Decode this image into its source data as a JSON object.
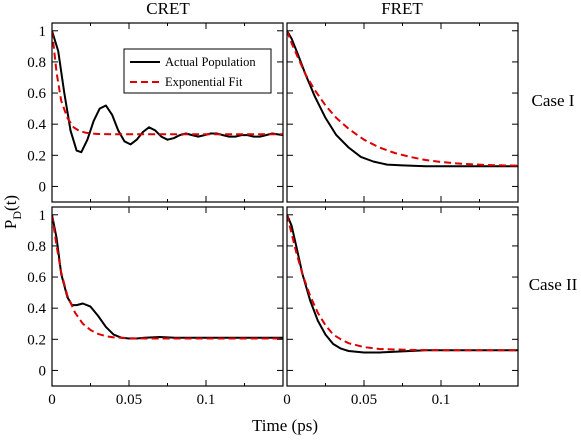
{
  "chart_data": [
    {
      "type": "line",
      "panel": "CRET / Case I",
      "xlim": [
        0,
        0.15
      ],
      "ylim": [
        -0.1,
        1.05
      ],
      "series": [
        {
          "name": "Actual Population",
          "color": "#000000",
          "dash": "solid",
          "x": [
            0,
            0.004,
            0.008,
            0.012,
            0.016,
            0.019,
            0.023,
            0.027,
            0.031,
            0.035,
            0.039,
            0.043,
            0.047,
            0.051,
            0.055,
            0.059,
            0.063,
            0.067,
            0.071,
            0.075,
            0.079,
            0.083,
            0.087,
            0.091,
            0.095,
            0.099,
            0.103,
            0.107,
            0.111,
            0.115,
            0.119,
            0.123,
            0.127,
            0.131,
            0.135,
            0.139,
            0.143,
            0.15
          ],
          "y": [
            1.0,
            0.87,
            0.6,
            0.36,
            0.23,
            0.22,
            0.3,
            0.42,
            0.5,
            0.52,
            0.46,
            0.36,
            0.29,
            0.27,
            0.3,
            0.35,
            0.38,
            0.36,
            0.32,
            0.3,
            0.31,
            0.33,
            0.34,
            0.33,
            0.32,
            0.33,
            0.34,
            0.34,
            0.33,
            0.32,
            0.32,
            0.33,
            0.33,
            0.32,
            0.32,
            0.33,
            0.34,
            0.33
          ]
        },
        {
          "name": "Exponential Fit",
          "color": "#dd0000",
          "dash": "dashed",
          "x": [
            0,
            0.003,
            0.006,
            0.01,
            0.014,
            0.018,
            0.022,
            0.026,
            0.03,
            0.035,
            0.04,
            0.05,
            0.06,
            0.08,
            0.1,
            0.12,
            0.15
          ],
          "y": [
            1.0,
            0.73,
            0.55,
            0.44,
            0.38,
            0.355,
            0.345,
            0.34,
            0.337,
            0.336,
            0.335,
            0.335,
            0.335,
            0.335,
            0.335,
            0.335,
            0.335
          ]
        }
      ],
      "legend": "top-right"
    },
    {
      "type": "line",
      "panel": "FRET / Case I",
      "xlim": [
        0,
        0.15
      ],
      "ylim": [
        -0.1,
        1.05
      ],
      "series": [
        {
          "name": "Actual Population",
          "color": "#000000",
          "dash": "solid",
          "x": [
            0,
            0.003,
            0.007,
            0.012,
            0.018,
            0.025,
            0.032,
            0.04,
            0.048,
            0.056,
            0.065,
            0.075,
            0.09,
            0.11,
            0.13,
            0.15
          ],
          "y": [
            1.0,
            0.95,
            0.85,
            0.72,
            0.58,
            0.44,
            0.33,
            0.25,
            0.19,
            0.16,
            0.14,
            0.135,
            0.13,
            0.13,
            0.13,
            0.13
          ]
        },
        {
          "name": "Exponential Fit",
          "color": "#dd0000",
          "dash": "dashed",
          "x": [
            0,
            0.003,
            0.007,
            0.012,
            0.018,
            0.025,
            0.032,
            0.04,
            0.05,
            0.06,
            0.07,
            0.08,
            0.09,
            0.1,
            0.11,
            0.12,
            0.13,
            0.14,
            0.15
          ],
          "y": [
            1.0,
            0.92,
            0.83,
            0.72,
            0.62,
            0.52,
            0.44,
            0.37,
            0.3,
            0.25,
            0.215,
            0.19,
            0.17,
            0.157,
            0.148,
            0.142,
            0.138,
            0.135,
            0.133
          ]
        }
      ]
    },
    {
      "type": "line",
      "panel": "CRET / Case II",
      "xlim": [
        0,
        0.15
      ],
      "ylim": [
        -0.1,
        1.05
      ],
      "series": [
        {
          "name": "Actual Population",
          "color": "#000000",
          "dash": "solid",
          "x": [
            0,
            0.003,
            0.006,
            0.01,
            0.013,
            0.016,
            0.02,
            0.025,
            0.03,
            0.035,
            0.04,
            0.045,
            0.05,
            0.055,
            0.06,
            0.07,
            0.08,
            0.1,
            0.12,
            0.15
          ],
          "y": [
            1.0,
            0.85,
            0.62,
            0.47,
            0.42,
            0.42,
            0.43,
            0.41,
            0.35,
            0.28,
            0.23,
            0.21,
            0.205,
            0.205,
            0.21,
            0.215,
            0.21,
            0.21,
            0.21,
            0.21
          ]
        },
        {
          "name": "Exponential Fit",
          "color": "#dd0000",
          "dash": "dashed",
          "x": [
            0,
            0.003,
            0.006,
            0.01,
            0.015,
            0.02,
            0.025,
            0.03,
            0.035,
            0.04,
            0.05,
            0.06,
            0.08,
            0.1,
            0.12,
            0.15
          ],
          "y": [
            1.0,
            0.8,
            0.63,
            0.48,
            0.37,
            0.3,
            0.26,
            0.235,
            0.22,
            0.212,
            0.207,
            0.205,
            0.205,
            0.205,
            0.205,
            0.205
          ]
        }
      ]
    },
    {
      "type": "line",
      "panel": "FRET / Case II",
      "xlim": [
        0,
        0.15
      ],
      "ylim": [
        -0.1,
        1.05
      ],
      "series": [
        {
          "name": "Actual Population",
          "color": "#000000",
          "dash": "solid",
          "x": [
            0,
            0.003,
            0.006,
            0.01,
            0.015,
            0.02,
            0.025,
            0.03,
            0.035,
            0.04,
            0.045,
            0.05,
            0.06,
            0.07,
            0.08,
            0.09,
            0.1,
            0.12,
            0.15
          ],
          "y": [
            1.0,
            0.93,
            0.8,
            0.62,
            0.45,
            0.32,
            0.23,
            0.17,
            0.14,
            0.125,
            0.12,
            0.115,
            0.115,
            0.12,
            0.125,
            0.13,
            0.13,
            0.13,
            0.13
          ]
        },
        {
          "name": "Exponential Fit",
          "color": "#dd0000",
          "dash": "dashed",
          "x": [
            0,
            0.003,
            0.006,
            0.01,
            0.015,
            0.02,
            0.025,
            0.03,
            0.035,
            0.04,
            0.05,
            0.06,
            0.08,
            0.1,
            0.12,
            0.15
          ],
          "y": [
            1.0,
            0.88,
            0.76,
            0.62,
            0.48,
            0.37,
            0.29,
            0.23,
            0.2,
            0.175,
            0.15,
            0.138,
            0.132,
            0.13,
            0.13,
            0.13
          ]
        }
      ]
    }
  ],
  "figure": {
    "col_titles": [
      "CRET",
      "FRET"
    ],
    "row_titles": [
      "Case I",
      "Case II"
    ],
    "xlabel": "Time (ps)",
    "ylabel_main": "P",
    "ylabel_sub": "D",
    "ylabel_tail": "(t)",
    "xticks": [
      0,
      0.05,
      0.1
    ],
    "xtick_labels": [
      "0",
      "0.05",
      "0.1"
    ],
    "yticks": [
      0,
      0.2,
      0.4,
      0.6,
      0.8,
      1
    ],
    "ytick_labels": [
      "0",
      "0.2",
      "0.4",
      "0.6",
      "0.8",
      "1"
    ],
    "legend_entries": [
      "Actual Population",
      "Exponential Fit"
    ]
  }
}
